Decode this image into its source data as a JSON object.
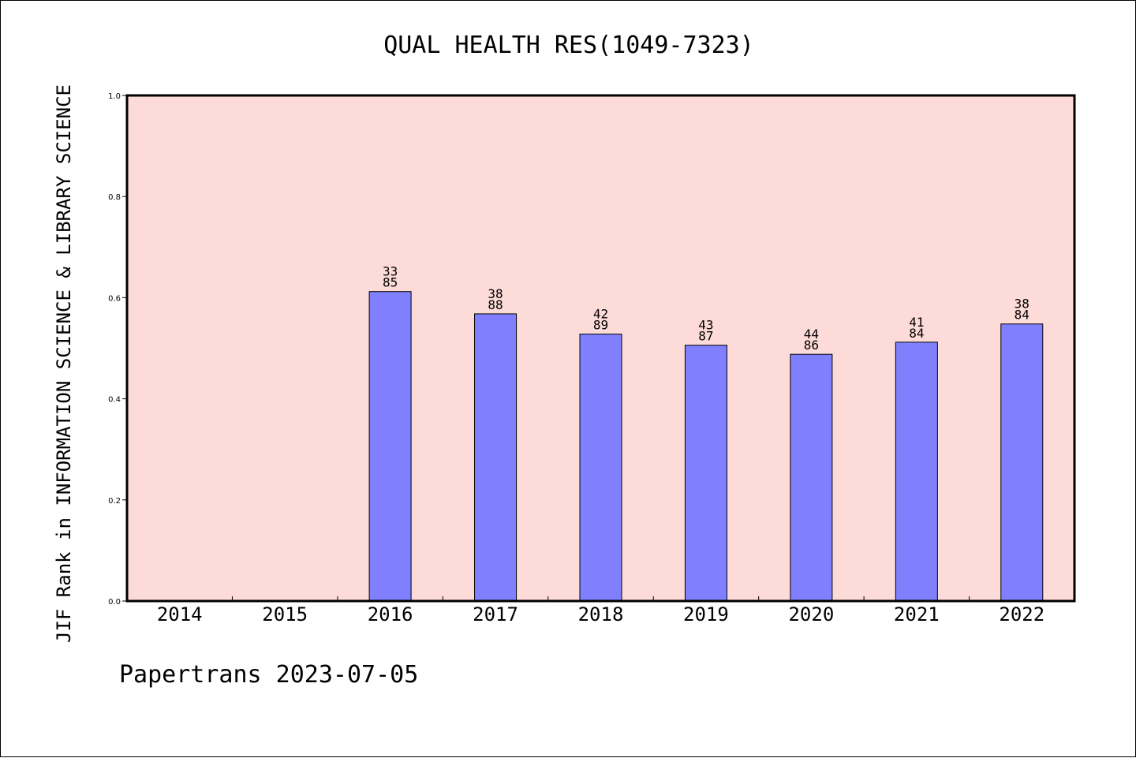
{
  "chart_data": {
    "type": "bar",
    "title": "QUAL HEALTH RES(1049-7323)",
    "xlabel": "",
    "ylabel": "JIF Rank in INFORMATION SCIENCE & LIBRARY SCIENCE",
    "ylim": [
      0,
      1.0
    ],
    "yticks": [
      "0.0",
      "0.2",
      "0.4",
      "0.6",
      "0.8",
      "1.0"
    ],
    "categories": [
      "2014",
      "2015",
      "2016",
      "2017",
      "2018",
      "2019",
      "2020",
      "2021",
      "2022"
    ],
    "values": [
      null,
      null,
      0.612,
      0.568,
      0.528,
      0.506,
      0.488,
      0.512,
      0.548
    ],
    "labels": [
      null,
      null,
      [
        "33",
        "85"
      ],
      [
        "38",
        "88"
      ],
      [
        "42",
        "89"
      ],
      [
        "43",
        "87"
      ],
      [
        "44",
        "86"
      ],
      [
        "41",
        "84"
      ],
      [
        "38",
        "84"
      ]
    ],
    "colors": {
      "plot_background": "#fddbd8",
      "bar_fill": "#8080ff",
      "bar_stroke": "#000000"
    },
    "grid": false,
    "legend": "none"
  },
  "footer": "Papertrans 2023-07-05"
}
